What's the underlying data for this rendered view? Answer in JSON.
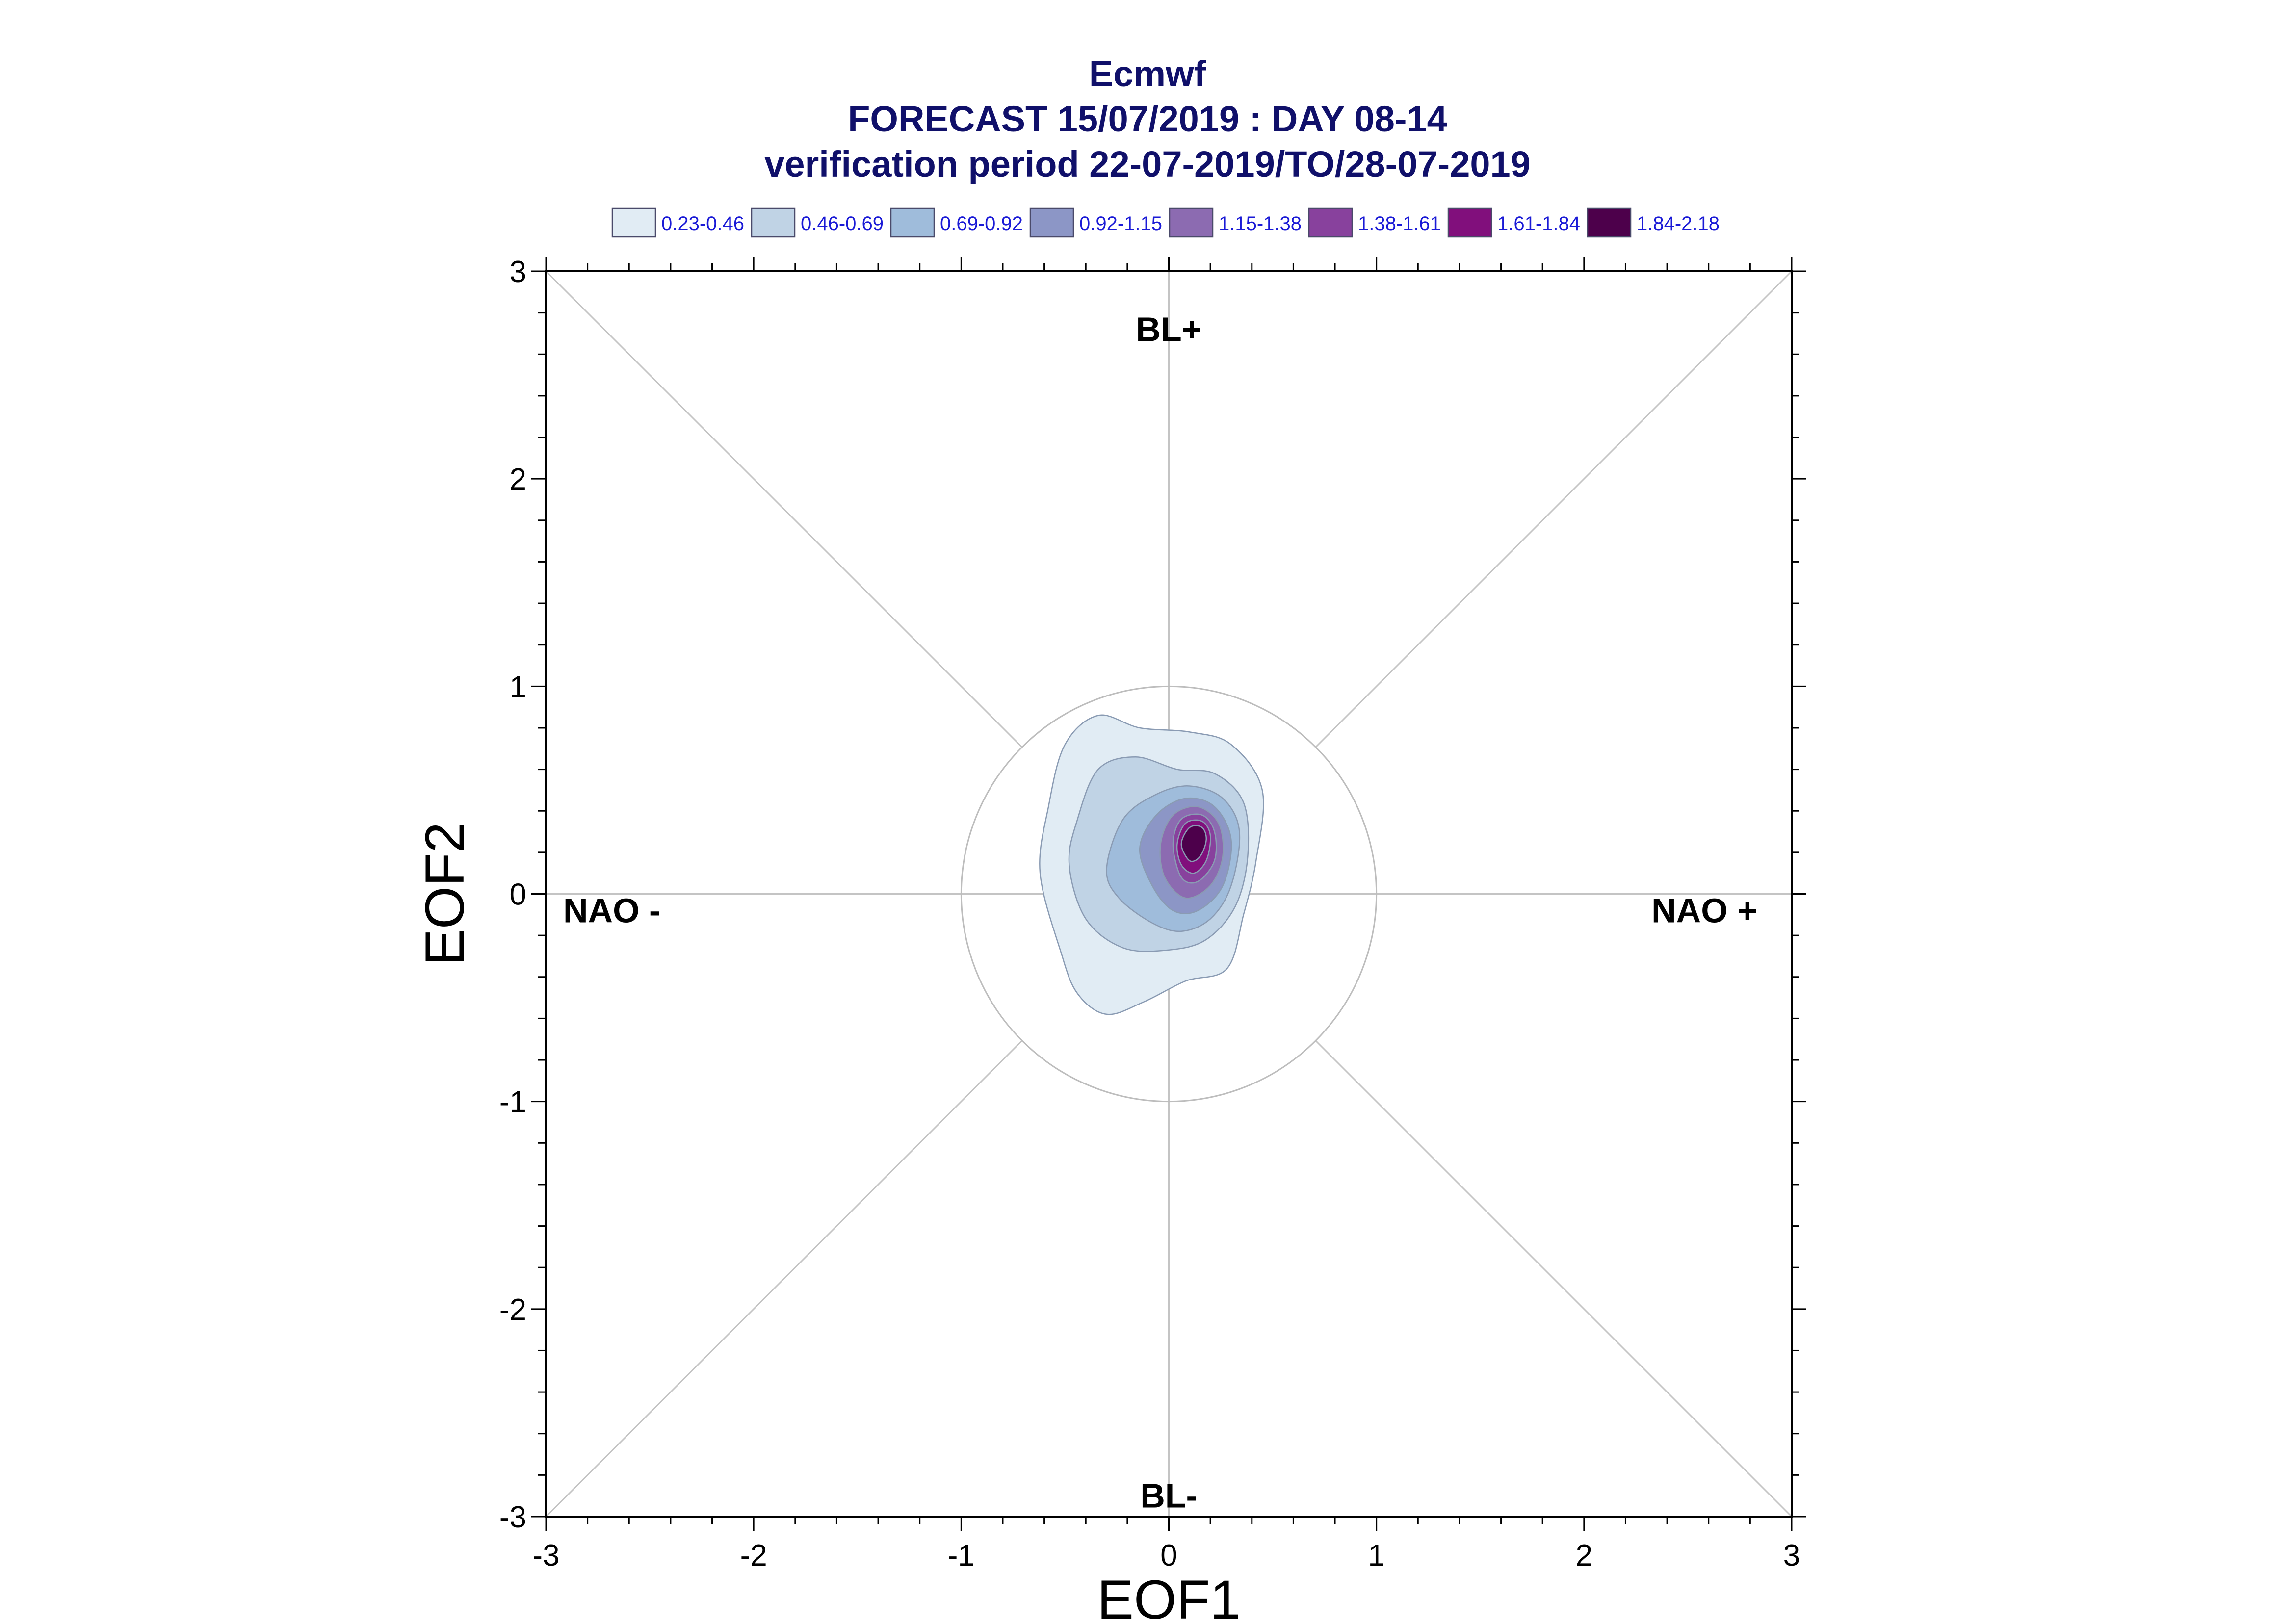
{
  "chart_data": {
    "type": "heatmap",
    "title_lines": [
      "Ecmwf",
      "FORECAST 15/07/2019 : DAY 08-14",
      "verification period 22-07-2019/TO/28-07-2019"
    ],
    "xlabel": "EOF1",
    "ylabel": "EOF2",
    "xlim": [
      -3,
      3
    ],
    "ylim": [
      -3,
      3
    ],
    "x_ticks": [
      "-3",
      "-2",
      "-1",
      "0",
      "1",
      "2",
      "3"
    ],
    "y_ticks": [
      "-3",
      "-2",
      "-1",
      "0",
      "1",
      "2",
      "3"
    ],
    "legend_position": "top",
    "legend": [
      {
        "label": "0.23-0.46",
        "color": "#e1ecf4"
      },
      {
        "label": "0.46-0.69",
        "color": "#c0d3e5"
      },
      {
        "label": "0.69-0.92",
        "color": "#9fbcdb"
      },
      {
        "label": "0.92-1.15",
        "color": "#8c96c6"
      },
      {
        "label": "1.15-1.38",
        "color": "#8c6bb1"
      },
      {
        "label": "1.38-1.61",
        "color": "#88419d"
      },
      {
        "label": "1.61-1.84",
        "color": "#810f7c"
      },
      {
        "label": "1.84-2.18",
        "color": "#4d004b"
      }
    ],
    "regime_labels": [
      {
        "text": "BL+",
        "x": 0,
        "y": 2.72
      },
      {
        "text": "BL-",
        "x": 0,
        "y": -2.9
      },
      {
        "text": "NAO -",
        "x": -2.6,
        "y": -0.08
      },
      {
        "text": "NAO +",
        "x": 2.55,
        "y": -0.08
      }
    ],
    "reference_circle_radius": 1,
    "contours": [
      {
        "level": "0.23-0.46",
        "points": [
          [
            -0.52,
            -0.28
          ],
          [
            -0.62,
            0.1
          ],
          [
            -0.58,
            0.42
          ],
          [
            -0.5,
            0.72
          ],
          [
            -0.34,
            0.86
          ],
          [
            -0.14,
            0.8
          ],
          [
            0.1,
            0.78
          ],
          [
            0.3,
            0.72
          ],
          [
            0.45,
            0.5
          ],
          [
            0.42,
            0.16
          ],
          [
            0.36,
            -0.1
          ],
          [
            0.28,
            -0.36
          ],
          [
            0.08,
            -0.42
          ],
          [
            -0.12,
            -0.52
          ],
          [
            -0.3,
            -0.58
          ],
          [
            -0.44,
            -0.48
          ]
        ]
      },
      {
        "level": "0.46-0.69",
        "points": [
          [
            -0.4,
            -0.12
          ],
          [
            -0.48,
            0.14
          ],
          [
            -0.44,
            0.36
          ],
          [
            -0.34,
            0.6
          ],
          [
            -0.16,
            0.66
          ],
          [
            0.04,
            0.6
          ],
          [
            0.22,
            0.58
          ],
          [
            0.36,
            0.44
          ],
          [
            0.38,
            0.18
          ],
          [
            0.32,
            -0.06
          ],
          [
            0.18,
            -0.22
          ],
          [
            0.0,
            -0.27
          ],
          [
            -0.22,
            -0.26
          ]
        ]
      },
      {
        "level": "0.69-0.92",
        "points": [
          [
            -0.3,
            0.12
          ],
          [
            -0.22,
            0.36
          ],
          [
            -0.06,
            0.48
          ],
          [
            0.1,
            0.52
          ],
          [
            0.26,
            0.46
          ],
          [
            0.34,
            0.3
          ],
          [
            0.3,
            0.04
          ],
          [
            0.2,
            -0.12
          ],
          [
            0.06,
            -0.18
          ],
          [
            -0.08,
            -0.14
          ],
          [
            -0.24,
            -0.02
          ]
        ]
      },
      {
        "level": "0.92-1.15",
        "points": [
          [
            -0.14,
            0.22
          ],
          [
            -0.06,
            0.38
          ],
          [
            0.08,
            0.46
          ],
          [
            0.22,
            0.42
          ],
          [
            0.3,
            0.26
          ],
          [
            0.26,
            0.04
          ],
          [
            0.14,
            -0.08
          ],
          [
            0.02,
            -0.08
          ],
          [
            -0.08,
            0.04
          ]
        ]
      },
      {
        "level": "1.15-1.38",
        "points": [
          [
            -0.04,
            0.24
          ],
          [
            0.02,
            0.38
          ],
          [
            0.14,
            0.42
          ],
          [
            0.24,
            0.34
          ],
          [
            0.26,
            0.18
          ],
          [
            0.2,
            0.04
          ],
          [
            0.08,
            -0.02
          ],
          [
            -0.02,
            0.08
          ]
        ]
      },
      {
        "level": "1.38-1.61",
        "points": [
          [
            0.02,
            0.24
          ],
          [
            0.06,
            0.36
          ],
          [
            0.16,
            0.38
          ],
          [
            0.22,
            0.3
          ],
          [
            0.22,
            0.16
          ],
          [
            0.14,
            0.06
          ],
          [
            0.06,
            0.08
          ]
        ]
      },
      {
        "level": "1.61-1.84",
        "points": [
          [
            0.04,
            0.24
          ],
          [
            0.08,
            0.34
          ],
          [
            0.16,
            0.35
          ],
          [
            0.2,
            0.28
          ],
          [
            0.18,
            0.16
          ],
          [
            0.12,
            0.1
          ],
          [
            0.06,
            0.14
          ]
        ]
      },
      {
        "level": "1.84-2.18",
        "points": [
          [
            0.06,
            0.24
          ],
          [
            0.1,
            0.32
          ],
          [
            0.16,
            0.32
          ],
          [
            0.18,
            0.26
          ],
          [
            0.15,
            0.18
          ],
          [
            0.1,
            0.16
          ]
        ]
      }
    ]
  }
}
